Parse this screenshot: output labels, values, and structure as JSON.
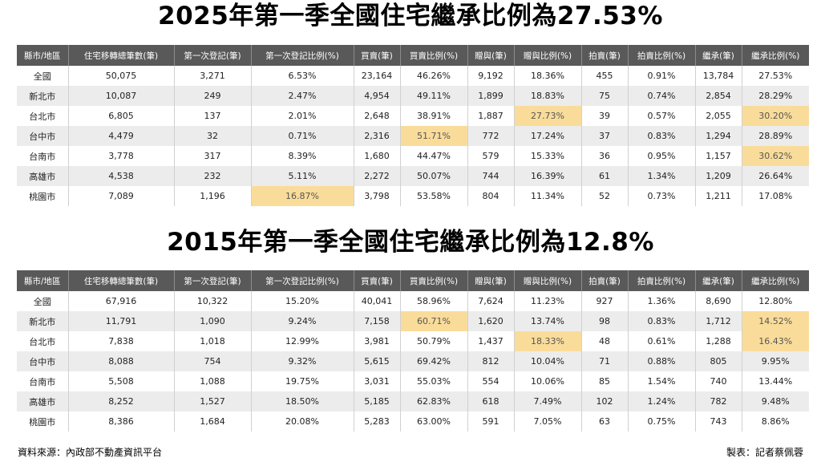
{
  "title_2025": "2025年第一季全國住宅繼承比例為27.53%",
  "title_2015": "2015年第一季全國住宅繼承比例為12.8%",
  "columns": [
    "縣市/地區",
    "住宅移轉總筆數(筆)",
    "第一次登記(筆)",
    "第一次登記比例(%)",
    "買賣(筆)",
    "買賣比例(%)",
    "贈與(筆)",
    "贈與比例(%)",
    "拍賣(筆)",
    "拍賣比例(%)",
    "繼承(筆)",
    "繼承比例(%)"
  ],
  "highlight_color": "#fadc9a",
  "header_color": "#595959",
  "table_2025": {
    "rows": [
      [
        "全國",
        "50,075",
        "3,271",
        "6.53%",
        "23,164",
        "46.26%",
        "9,192",
        "18.36%",
        "455",
        "0.91%",
        "13,784",
        "27.53%"
      ],
      [
        "新北市",
        "10,087",
        "249",
        "2.47%",
        "4,954",
        "49.11%",
        "1,899",
        "18.83%",
        "75",
        "0.74%",
        "2,854",
        "28.29%"
      ],
      [
        "台北市",
        "6,805",
        "137",
        "2.01%",
        "2,648",
        "38.91%",
        "1,887",
        "27.73%",
        "39",
        "0.57%",
        "2,055",
        "30.20%"
      ],
      [
        "台中市",
        "4,479",
        "32",
        "0.71%",
        "2,316",
        "51.71%",
        "772",
        "17.24%",
        "37",
        "0.83%",
        "1,294",
        "28.89%"
      ],
      [
        "台南市",
        "3,778",
        "317",
        "8.39%",
        "1,680",
        "44.47%",
        "579",
        "15.33%",
        "36",
        "0.95%",
        "1,157",
        "30.62%"
      ],
      [
        "高雄市",
        "4,538",
        "232",
        "5.11%",
        "2,272",
        "50.07%",
        "744",
        "16.39%",
        "61",
        "1.34%",
        "1,209",
        "26.64%"
      ],
      [
        "桃園市",
        "7,089",
        "1,196",
        "16.87%",
        "3,798",
        "53.58%",
        "804",
        "11.34%",
        "52",
        "0.73%",
        "1,211",
        "17.08%"
      ]
    ],
    "highlights": [
      [
        2,
        7
      ],
      [
        2,
        11
      ],
      [
        3,
        5
      ],
      [
        4,
        11
      ],
      [
        6,
        3
      ]
    ]
  },
  "table_2015": {
    "rows": [
      [
        "全國",
        "67,916",
        "10,322",
        "15.20%",
        "40,041",
        "58.96%",
        "7,624",
        "11.23%",
        "927",
        "1.36%",
        "8,690",
        "12.80%"
      ],
      [
        "新北市",
        "11,791",
        "1,090",
        "9.24%",
        "7,158",
        "60.71%",
        "1,620",
        "13.74%",
        "98",
        "0.83%",
        "1,712",
        "14.52%"
      ],
      [
        "台北市",
        "7,838",
        "1,018",
        "12.99%",
        "3,981",
        "50.79%",
        "1,437",
        "18.33%",
        "48",
        "0.61%",
        "1,288",
        "16.43%"
      ],
      [
        "台中市",
        "8,088",
        "754",
        "9.32%",
        "5,615",
        "69.42%",
        "812",
        "10.04%",
        "71",
        "0.88%",
        "805",
        "9.95%"
      ],
      [
        "台南市",
        "5,508",
        "1,088",
        "19.75%",
        "3,031",
        "55.03%",
        "554",
        "10.06%",
        "85",
        "1.54%",
        "740",
        "13.44%"
      ],
      [
        "高雄市",
        "8,252",
        "1,527",
        "18.50%",
        "5,185",
        "62.83%",
        "618",
        "7.49%",
        "102",
        "1.24%",
        "782",
        "9.48%"
      ],
      [
        "桃園市",
        "8,386",
        "1,684",
        "20.08%",
        "5,283",
        "63.00%",
        "591",
        "7.05%",
        "63",
        "0.75%",
        "743",
        "8.86%"
      ]
    ],
    "highlights": [
      [
        1,
        5
      ],
      [
        1,
        11
      ],
      [
        2,
        7
      ],
      [
        2,
        11
      ]
    ]
  },
  "footer": {
    "source": "資料來源：內政部不動產資訊平台",
    "credit": "製表：記者蔡佩蓉"
  }
}
